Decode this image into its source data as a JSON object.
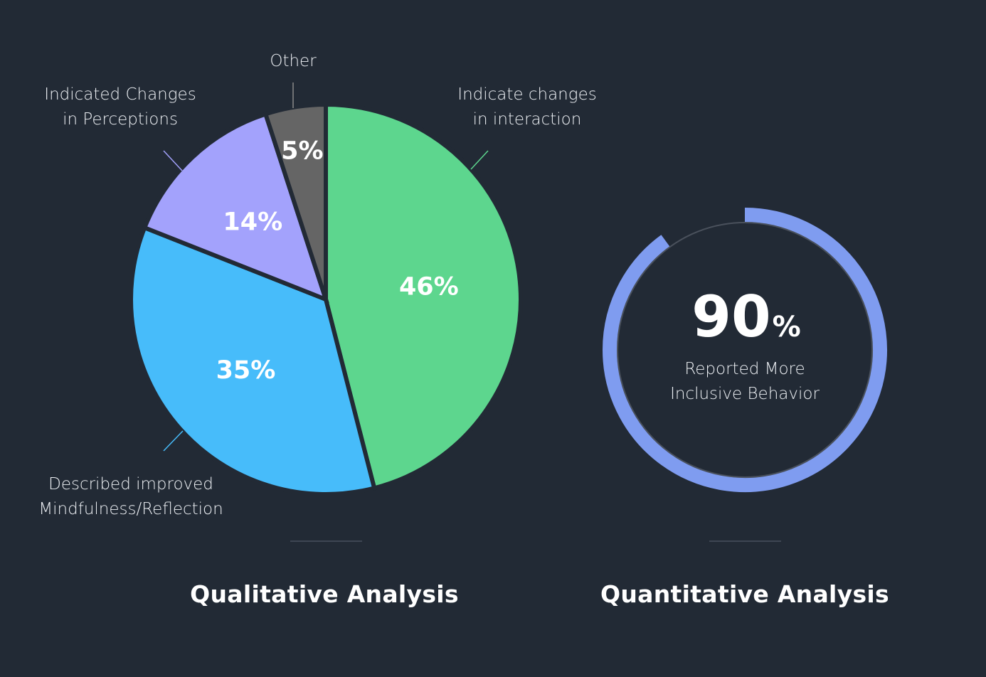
{
  "chart_data": [
    {
      "type": "pie",
      "title": "Qualitative Analysis",
      "slices": [
        {
          "label_lines": [
            "Indicate changes",
            "in interaction"
          ],
          "value": 46,
          "display": "46%",
          "color": "#5dd68e"
        },
        {
          "label_lines": [
            "Described improved",
            "Mindfulness/Reflection"
          ],
          "value": 35,
          "display": "35%",
          "color": "#47bcfa"
        },
        {
          "label_lines": [
            "Indicated Changes",
            "in Perceptions"
          ],
          "value": 14,
          "display": "14%",
          "color": "#a3a2fc"
        },
        {
          "label_lines": [
            "Other"
          ],
          "value": 5,
          "display": "5%",
          "color": "#656565"
        }
      ]
    },
    {
      "type": "gauge",
      "title": "Quantitative Analysis",
      "value": 90,
      "number": "90",
      "unit": "%",
      "caption_lines": [
        "Reported More",
        "Inclusive Behavior"
      ],
      "color": "#7f9cf0"
    }
  ],
  "titles": {
    "qualitative": "Qualitative Analysis",
    "quantitative": "Quantitative Analysis"
  }
}
